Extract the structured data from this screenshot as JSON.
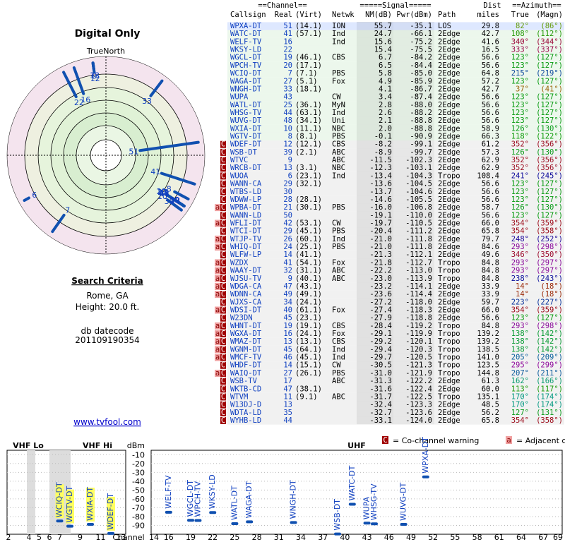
{
  "left": {
    "title": "Digital Only",
    "north": "TrueNorth",
    "criteria_title": "Search Criteria",
    "location": "Rome, GA",
    "height": "Height: 20.0 ft.",
    "datecode_label": "db datecode",
    "datecode": "201109190354",
    "link": "www.tvfool.com"
  },
  "table": {
    "group_headers": [
      "==Channel==",
      "=====Signal=====",
      "Dist",
      "==Azimuth=="
    ],
    "headers": [
      "Callsign",
      "Real",
      "(Virt)",
      "Netwk",
      "NM(dB)",
      "Pwr(dBm)",
      "Path",
      "miles",
      "True",
      "(Magn)"
    ],
    "rows": [
      {
        "cells": [
          "WPXA-DT",
          "51",
          "(14.1)",
          "ION",
          "55.7",
          "-35.1",
          "LOS",
          "29.8",
          "82°",
          "(86°)"
        ]
      },
      {
        "cells": [
          "WATC-DT",
          "41",
          "(57.1)",
          "Ind",
          "24.7",
          "-66.1",
          "2Edge",
          "42.7",
          "108°",
          "(112°)"
        ]
      },
      {
        "cells": [
          "WELF-TV",
          "16",
          null,
          "Ind",
          "15.6",
          "-75.2",
          "2Edge",
          "41.6",
          "340°",
          "(344°)"
        ]
      },
      {
        "cells": [
          "WKSY-LD",
          "22",
          null,
          null,
          "15.4",
          "-75.5",
          "2Edge",
          "16.5",
          "333°",
          "(337°)"
        ]
      },
      {
        "cells": [
          "WGCL-DT",
          "19",
          "(46.1)",
          "CBS",
          "6.7",
          "-84.2",
          "2Edge",
          "56.6",
          "123°",
          "(127°)"
        ]
      },
      {
        "cells": [
          "WPCH-TV",
          "20",
          "(17.1)",
          null,
          "6.5",
          "-84.4",
          "2Edge",
          "56.6",
          "123°",
          "(127°)"
        ]
      },
      {
        "cells": [
          "WCIQ-DT",
          "7",
          "(7.1)",
          "PBS",
          "5.8",
          "-85.0",
          "2Edge",
          "64.8",
          "215°",
          "(219°)"
        ]
      },
      {
        "cells": [
          "WAGA-DT",
          "27",
          "(5.1)",
          "Fox",
          "4.9",
          "-85.9",
          "2Edge",
          "57.2",
          "123°",
          "(127°)"
        ]
      },
      {
        "cells": [
          "WNGH-DT",
          "33",
          "(18.1)",
          null,
          "4.1",
          "-86.7",
          "2Edge",
          "42.7",
          "37°",
          "(41°)"
        ]
      },
      {
        "cells": [
          "WUPA",
          "43",
          null,
          "CW",
          "3.4",
          "-87.4",
          "2Edge",
          "56.6",
          "123°",
          "(127°)"
        ]
      },
      {
        "cells": [
          "WATL-DT",
          "25",
          "(36.1)",
          "MyN",
          "2.8",
          "-88.0",
          "2Edge",
          "56.6",
          "123°",
          "(127°)"
        ]
      },
      {
        "cells": [
          "WHSG-TV",
          "44",
          "(63.1)",
          "Ind",
          "2.6",
          "-88.2",
          "2Edge",
          "56.6",
          "123°",
          "(127°)"
        ]
      },
      {
        "cells": [
          "WUVG-DT",
          "48",
          "(34.1)",
          "Uni",
          "2.1",
          "-88.8",
          "2Edge",
          "56.6",
          "123°",
          "(127°)"
        ]
      },
      {
        "cells": [
          "WXIA-DT",
          "10",
          "(11.1)",
          "NBC",
          "2.0",
          "-88.8",
          "2Edge",
          "58.9",
          "126°",
          "(130°)"
        ]
      },
      {
        "cells": [
          "WGTV-DT",
          "8",
          "(8.1)",
          "PBS",
          "-0.1",
          "-90.9",
          "2Edge",
          "66.3",
          "118°",
          "(122°)"
        ]
      },
      {
        "cells": [
          "WDEF-DT",
          "12",
          "(12.1)",
          "CBS",
          "-8.2",
          "-99.1",
          "2Edge",
          "61.2",
          "352°",
          "(356°)"
        ],
        "flags": [
          "C"
        ]
      },
      {
        "cells": [
          "WSB-DT",
          "39",
          "(2.1)",
          "ABC",
          "-8.9",
          "-99.7",
          "2Edge",
          "57.3",
          "126°",
          "(130°)"
        ],
        "flags": [
          "C"
        ]
      },
      {
        "cells": [
          "WTVC",
          "9",
          null,
          "ABC",
          "-11.5",
          "-102.3",
          "2Edge",
          "62.9",
          "352°",
          "(356°)"
        ],
        "flags": [
          "C"
        ]
      },
      {
        "cells": [
          "WRCB-DT",
          "13",
          "(3.1)",
          "NBC",
          "-12.3",
          "-103.1",
          "2Edge",
          "62.9",
          "352°",
          "(356°)"
        ],
        "flags": [
          "C"
        ]
      },
      {
        "cells": [
          "WUOA",
          "6",
          "(23.1)",
          "Ind",
          "-13.4",
          "-104.3",
          "Tropo",
          "108.4",
          "241°",
          "(245°)"
        ],
        "flags": [
          "C"
        ]
      },
      {
        "cells": [
          "WANN-CA",
          "29",
          "(32.1)",
          null,
          "-13.6",
          "-104.5",
          "2Edge",
          "56.6",
          "123°",
          "(127°)"
        ],
        "flags": [
          "C"
        ]
      },
      {
        "cells": [
          "WTBS-LD",
          "30",
          null,
          null,
          "-13.7",
          "-104.6",
          "2Edge",
          "56.6",
          "123°",
          "(127°)"
        ],
        "flags": [
          "C"
        ]
      },
      {
        "cells": [
          "WDWW-LP",
          "28",
          "(28.1)",
          null,
          "-14.6",
          "-105.5",
          "2Edge",
          "56.6",
          "123°",
          "(127°)"
        ],
        "flags": [
          "C"
        ]
      },
      {
        "cells": [
          "WPBA-DT",
          "21",
          "(30.1)",
          "PBS",
          "-16.0",
          "-106.8",
          "2Edge",
          "58.7",
          "126°",
          "(130°)"
        ],
        "flags": [
          "a",
          "C"
        ]
      },
      {
        "cells": [
          "WANN-LD",
          "50",
          null,
          null,
          "-19.1",
          "-110.0",
          "2Edge",
          "56.6",
          "123°",
          "(127°)"
        ],
        "flags": [
          "C"
        ]
      },
      {
        "cells": [
          "WFLI-DT",
          "42",
          "(53.1)",
          "CW",
          "-19.7",
          "-110.5",
          "2Edge",
          "66.0",
          "354°",
          "(359°)"
        ],
        "flags": [
          "a",
          "C"
        ]
      },
      {
        "cells": [
          "WTCI-DT",
          "29",
          "(45.1)",
          "PBS",
          "-20.4",
          "-111.2",
          "2Edge",
          "65.8",
          "354°",
          "(358°)"
        ],
        "flags": [
          "C"
        ]
      },
      {
        "cells": [
          "WTJP-TV",
          "26",
          "(60.1)",
          "Ind",
          "-21.0",
          "-111.8",
          "2Edge",
          "79.7",
          "248°",
          "(252°)"
        ],
        "flags": [
          "a",
          "C"
        ]
      },
      {
        "cells": [
          "WHIQ-DT",
          "24",
          "(25.1)",
          "PBS",
          "-21.0",
          "-111.8",
          "2Edge",
          "84.6",
          "293°",
          "(298°)"
        ],
        "flags": [
          "a",
          "C"
        ]
      },
      {
        "cells": [
          "WLFW-LP",
          "14",
          "(41.1)",
          null,
          "-21.3",
          "-112.1",
          "2Edge",
          "49.6",
          "346°",
          "(350°)"
        ],
        "flags": [
          "C"
        ]
      },
      {
        "cells": [
          "WZDX",
          "41",
          "(54.1)",
          "Fox",
          "-21.8",
          "-112.7",
          "Tropo",
          "84.8",
          "293°",
          "(297°)"
        ],
        "flags": [
          "a",
          "C"
        ]
      },
      {
        "cells": [
          "WAAY-DT",
          "32",
          "(31.1)",
          "ABC",
          "-22.2",
          "-113.0",
          "Tropo",
          "84.8",
          "293°",
          "(297°)"
        ],
        "flags": [
          "a",
          "C"
        ]
      },
      {
        "cells": [
          "WJSU-TV",
          "9",
          "(40.1)",
          "ABC",
          "-23.0",
          "-113.9",
          "Tropo",
          "84.8",
          "238°",
          "(243°)"
        ],
        "flags": [
          "a",
          "C"
        ]
      },
      {
        "cells": [
          "WDGA-CA",
          "47",
          "(43.1)",
          null,
          "-23.2",
          "-114.1",
          "2Edge",
          "33.9",
          "14°",
          "(18°)"
        ],
        "flags": [
          "a",
          "C"
        ]
      },
      {
        "cells": [
          "WDNN-CA",
          "49",
          "(49.1)",
          null,
          "-23.6",
          "-114.4",
          "2Edge",
          "33.9",
          "14°",
          "(18°)"
        ],
        "flags": [
          "a",
          "C"
        ]
      },
      {
        "cells": [
          "WJXS-CA",
          "34",
          "(24.1)",
          null,
          "-27.2",
          "-118.0",
          "2Edge",
          "59.7",
          "223°",
          "(227°)"
        ],
        "flags": [
          "C"
        ]
      },
      {
        "cells": [
          "WDSI-DT",
          "40",
          "(61.1)",
          "Fox",
          "-27.4",
          "-118.3",
          "2Edge",
          "66.0",
          "354°",
          "(359°)"
        ],
        "flags": [
          "a",
          "C"
        ]
      },
      {
        "cells": [
          "W23DN",
          "45",
          "(23.1)",
          null,
          "-27.9",
          "-118.8",
          "2Edge",
          "56.6",
          "123°",
          "(127°)"
        ],
        "flags": [
          "C"
        ]
      },
      {
        "cells": [
          "WHNT-DT",
          "19",
          "(19.1)",
          "CBS",
          "-28.4",
          "-119.2",
          "Tropo",
          "84.8",
          "293°",
          "(298°)"
        ],
        "flags": [
          "a",
          "C"
        ]
      },
      {
        "cells": [
          "WGXA-DT",
          "16",
          "(24.1)",
          "Fox",
          "-29.1",
          "-119.9",
          "Tropo",
          "139.2",
          "138°",
          "(142°)"
        ],
        "flags": [
          "a",
          "C"
        ]
      },
      {
        "cells": [
          "WMAZ-DT",
          "13",
          "(13.1)",
          "CBS",
          "-29.2",
          "-120.1",
          "Tropo",
          "139.2",
          "138°",
          "(142°)"
        ],
        "flags": [
          "a",
          "C"
        ]
      },
      {
        "cells": [
          "WGNM-DT",
          "45",
          "(64.1)",
          "Ind",
          "-29.4",
          "-120.3",
          "Tropo",
          "138.5",
          "138°",
          "(142°)"
        ],
        "flags": [
          "a",
          "C"
        ]
      },
      {
        "cells": [
          "WMCF-TV",
          "46",
          "(45.1)",
          "Ind",
          "-29.7",
          "-120.5",
          "Tropo",
          "141.0",
          "205°",
          "(209°)"
        ],
        "flags": [
          "a",
          "C"
        ]
      },
      {
        "cells": [
          "WHDF-DT",
          "14",
          "(15.1)",
          "CW",
          "-30.5",
          "-121.3",
          "Tropo",
          "123.5",
          "295°",
          "(299°)"
        ],
        "flags": [
          "C"
        ]
      },
      {
        "cells": [
          "WAIQ-DT",
          "27",
          "(26.1)",
          "PBS",
          "-31.0",
          "-121.9",
          "Tropo",
          "144.8",
          "207°",
          "(211°)"
        ],
        "flags": [
          "a",
          "C"
        ]
      },
      {
        "cells": [
          "WSB-TV",
          "17",
          null,
          "ABC",
          "-31.3",
          "-122.2",
          "2Edge",
          "61.3",
          "162°",
          "(166°)"
        ],
        "flags": [
          "C"
        ]
      },
      {
        "cells": [
          "WKTB-CD",
          "47",
          "(38.1)",
          null,
          "-31.6",
          "-122.4",
          "2Edge",
          "60.0",
          "113°",
          "(117°)"
        ],
        "flags": [
          "C"
        ]
      },
      {
        "cells": [
          "WTVM",
          "11",
          "(9.1)",
          "ABC",
          "-31.7",
          "-122.5",
          "Tropo",
          "135.1",
          "170°",
          "(174°)"
        ],
        "flags": [
          "C"
        ]
      },
      {
        "cells": [
          "W13DJ-D",
          "13",
          null,
          null,
          "-32.4",
          "-123.3",
          "2Edge",
          "48.5",
          "170°",
          "(174°)"
        ],
        "flags": [
          "C"
        ]
      },
      {
        "cells": [
          "WDTA-LD",
          "35",
          null,
          null,
          "-32.7",
          "-123.6",
          "2Edge",
          "56.2",
          "127°",
          "(131°)"
        ],
        "flags": [
          "C"
        ]
      },
      {
        "cells": [
          "WYHB-LD",
          "44",
          null,
          null,
          "-33.1",
          "-124.0",
          "2Edge",
          "65.8",
          "354°",
          "(358°)"
        ],
        "flags": [
          "C"
        ]
      }
    ]
  },
  "legend": {
    "co": "C",
    "co_text": "= Co-channel warning",
    "adj": "a",
    "adj_text": "= Adjacent channel warning"
  },
  "spectrum": {
    "bands": [
      "VHF Lo",
      "VHF Hi",
      "UHF"
    ],
    "y_unit": "dBm",
    "x_label": "Channel",
    "ylim": [
      -100,
      -5
    ],
    "yticks": [
      -10,
      -20,
      -30,
      -40,
      -50,
      -60,
      -70,
      -80,
      -90
    ],
    "vhf_ticks": [
      2,
      4,
      5,
      6,
      7,
      9,
      11,
      13
    ],
    "uhf_ticks": [
      14,
      16,
      19,
      22,
      25,
      28,
      31,
      34,
      37,
      40,
      43,
      46,
      49,
      52,
      55,
      58,
      61,
      64,
      67,
      69
    ]
  }
}
